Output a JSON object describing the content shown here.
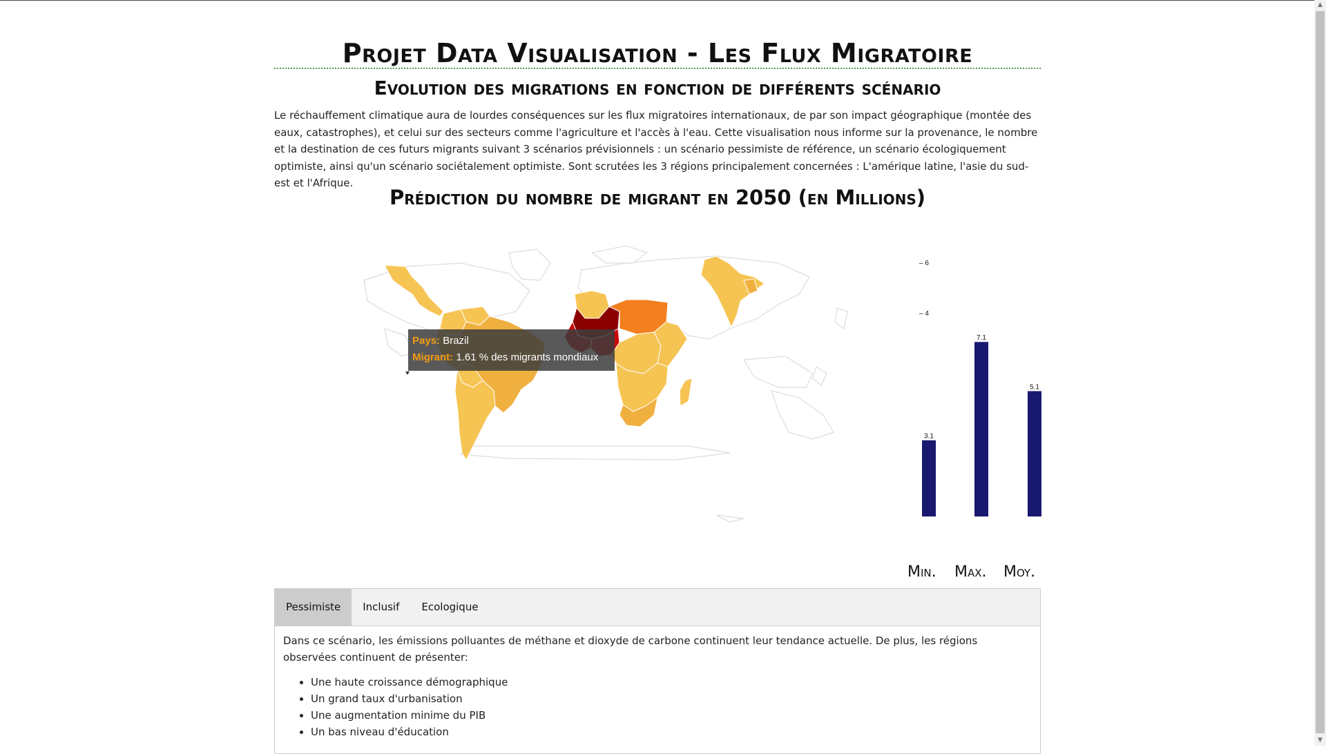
{
  "page": {
    "title": "Projet Data Visualisation - Les Flux Migratoire",
    "subtitle": "Evolution des migrations en fonction de différents scénario",
    "intro": "Le réchauffement climatique aura de lourdes conséquences sur les flux migratoires internationaux, de par son impact géographique (montée des eaux, catastrophes), et celui sur des secteurs comme l'agriculture et l'accès à l'eau. Cette visualisation nous informe sur la provenance, le nombre et la destination de ces futurs migrants suivant 3 scénarios prévisionnels : un scénario pessimiste de référence, un scénario écologiquement optimiste, ainsi qu'un scénario sociétalement optimiste. Sont scrutées les 3 régions principalement concernées : L'amérique latine, l'asie du sud-est et l'Afrique.",
    "chart_title": "Prédiction du nombre de migrant en 2050 (en Millions)"
  },
  "tooltip": {
    "country_key": "Pays:",
    "country_value": "Brazil",
    "migrant_key": "Migrant:",
    "migrant_value": "1.61 % des migrants mondiaux"
  },
  "map_colors": {
    "land_empty": "#ffffff",
    "border": "#dddddd",
    "light": "#f6c453",
    "medium": "#f0b040",
    "orange": "#f37f1f",
    "red": "#cc0a0a",
    "darkred": "#8b0000"
  },
  "chart_data": {
    "type": "bar",
    "categories": [
      "Min.",
      "Max.",
      "Moy."
    ],
    "values": [
      3.1,
      7.1,
      5.1
    ],
    "ylim": [
      0,
      8
    ],
    "yticks": [
      4,
      6
    ],
    "color": "#191970"
  },
  "tabs": {
    "items": [
      "Pessimiste",
      "Inclusif",
      "Ecologique"
    ],
    "active": "Pessimiste",
    "content_intro": "Dans ce scénario, les émissions polluantes de méthane et dioxyde de carbone continuent leur tendance actuelle. De plus, les régions observées continuent de présenter:",
    "bullets": [
      "Une haute croissance démographique",
      "Un grand taux d'urbanisation",
      "Une augmentation minime du PIB",
      "Un bas niveau d'éducation"
    ]
  }
}
